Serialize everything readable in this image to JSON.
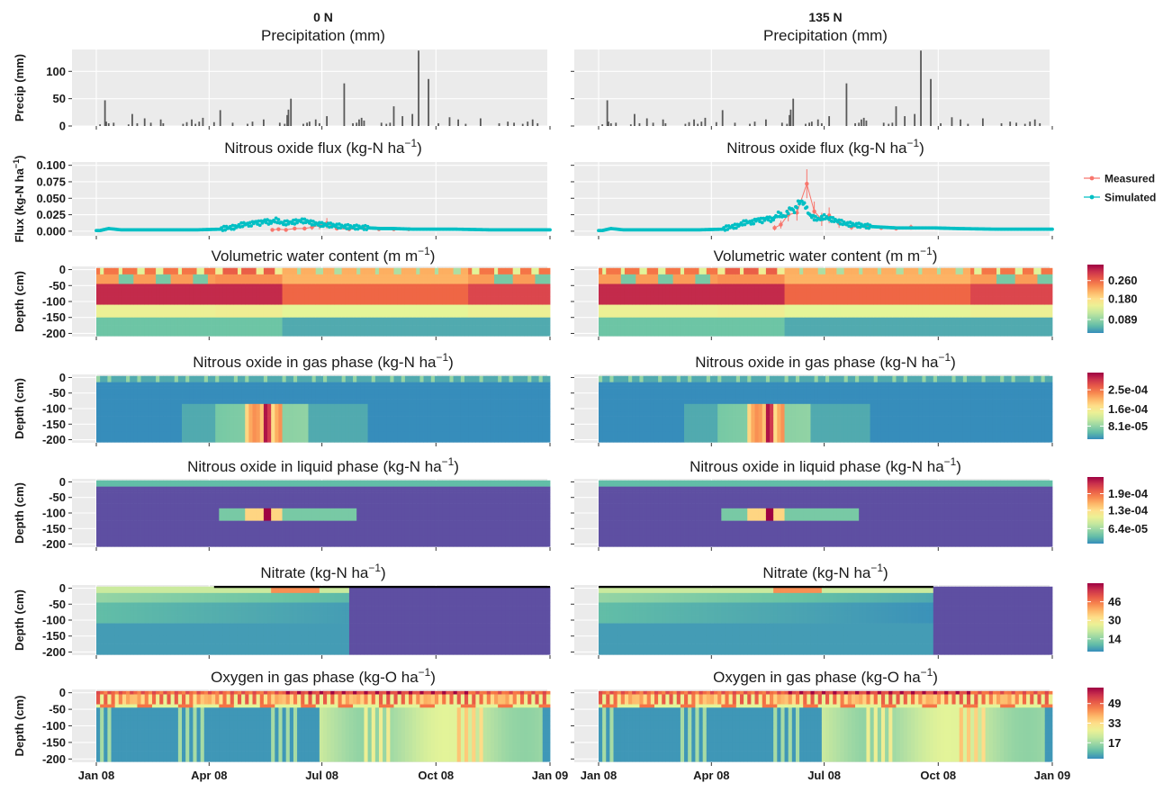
{
  "columns": [
    {
      "title": "0 N"
    },
    {
      "title": "135 N"
    }
  ],
  "colors": {
    "panel_bg": "#ebebeb",
    "bar": "#595959",
    "measured": "#f8766d",
    "simulated": "#00bfc4",
    "spectral": [
      "#3288bd",
      "#66c2a5",
      "#abdda4",
      "#e6f598",
      "#fee08b",
      "#fdae61",
      "#f46d43",
      "#d53e4f",
      "#9e0142"
    ],
    "deep_purple": "#5e4fa2"
  },
  "x_axis": {
    "ticks": [
      "Jan 08",
      "Apr 08",
      "Jul 08",
      "Oct 08",
      "Jan 09"
    ],
    "tick_days": [
      0,
      91,
      182,
      274,
      366
    ]
  },
  "chart_data": [
    {
      "type": "bar",
      "title": "Precipitation (mm)",
      "ylabel": "Precip (mm)",
      "ylim": [
        0,
        140
      ],
      "yticks": [
        "0",
        "50",
        "100"
      ],
      "ytick_values": [
        0,
        50,
        100
      ],
      "x_units": "day of year 2008",
      "series": [
        {
          "x": [
            3,
            7,
            8,
            10,
            14,
            26,
            29,
            33,
            39,
            44,
            52,
            54,
            70,
            73,
            77,
            80,
            83,
            86,
            95,
            100,
            110,
            122,
            126,
            135,
            148,
            152,
            154,
            155,
            157,
            167,
            170,
            172,
            177,
            180,
            186,
            200,
            207,
            210,
            212,
            214,
            216,
            230,
            234,
            237,
            240,
            247,
            255,
            260,
            268,
            276,
            285,
            292,
            298,
            310,
            325,
            332,
            337,
            344,
            348,
            352,
            356
          ],
          "values": [
            3,
            47,
            8,
            5,
            6,
            3,
            22,
            5,
            14,
            6,
            12,
            5,
            4,
            7,
            12,
            4,
            8,
            15,
            7,
            29,
            6,
            4,
            8,
            12,
            6,
            4,
            20,
            30,
            50,
            4,
            6,
            8,
            12,
            5,
            18,
            78,
            5,
            6,
            12,
            15,
            10,
            6,
            4,
            6,
            36,
            18,
            22,
            138,
            86,
            5,
            16,
            12,
            4,
            14,
            5,
            8,
            6,
            4,
            8,
            12,
            5
          ]
        }
      ]
    },
    {
      "type": "line",
      "title": "Nitrous oxide flux (kg-N ha⁻¹)",
      "ylabel": "Flux (kg-N ha⁻¹)",
      "ylim": [
        -0.007,
        0.105
      ],
      "yticks": [
        "0.000",
        "0.025",
        "0.050",
        "0.075",
        "0.100"
      ],
      "ytick_values": [
        0,
        0.025,
        0.05,
        0.075,
        0.1
      ],
      "x_units": "day of year 2008",
      "legend": {
        "position": "right",
        "entries": [
          "Measured",
          "Simulated"
        ]
      },
      "panels": [
        {
          "column": "0 N",
          "simulated": {
            "x": [
              3,
              10,
              20,
              40,
              60,
              80,
              100,
              105,
              112,
              116,
              120,
              124,
              128,
              132,
              136,
              140,
              145,
              150,
              155,
              160,
              165,
              170,
              175,
              182,
              190,
              200,
              210,
              220,
              230,
              240,
              255,
              270,
              290,
              320,
              350,
              366
            ],
            "values": [
              0.001,
              0.004,
              0.002,
              0.002,
              0.002,
              0.002,
              0.003,
              0.005,
              0.006,
              0.009,
              0.011,
              0.01,
              0.014,
              0.012,
              0.016,
              0.013,
              0.017,
              0.012,
              0.013,
              0.014,
              0.016,
              0.015,
              0.012,
              0.01,
              0.009,
              0.007,
              0.006,
              0.005,
              0.004,
              0.004,
              0.003,
              0.003,
              0.003,
              0.002,
              0.002,
              0.002
            ]
          },
          "measured": {
            "x": [
              142,
              147,
              153,
              160,
              168,
              174,
              180,
              186,
              194,
              204,
              216,
              228,
              240,
              252
            ],
            "values": [
              0.002,
              0.003,
              0.002,
              0.004,
              0.004,
              0.006,
              0.009,
              0.012,
              0.004,
              0.003,
              0.004,
              0.003,
              0.003,
              0.003
            ],
            "errors": [
              0.002,
              0.002,
              0.002,
              0.003,
              0.003,
              0.004,
              0.006,
              0.008,
              0.003,
              0.002,
              0.002,
              0.002,
              0.002,
              0.002
            ]
          }
        },
        {
          "column": "135 N",
          "simulated": {
            "x": [
              3,
              10,
              20,
              40,
              60,
              80,
              100,
              105,
              112,
              116,
              120,
              124,
              128,
              132,
              136,
              140,
              145,
              150,
              155,
              158,
              161,
              164,
              167,
              170,
              174,
              178,
              182,
              186,
              190,
              195,
              200,
              210,
              220,
              230,
              240,
              255,
              270,
              290,
              320,
              350,
              366
            ],
            "values": [
              0.001,
              0.004,
              0.002,
              0.002,
              0.002,
              0.002,
              0.003,
              0.006,
              0.008,
              0.012,
              0.014,
              0.013,
              0.018,
              0.016,
              0.02,
              0.017,
              0.026,
              0.022,
              0.035,
              0.03,
              0.043,
              0.045,
              0.038,
              0.025,
              0.02,
              0.018,
              0.022,
              0.019,
              0.017,
              0.014,
              0.011,
              0.009,
              0.007,
              0.006,
              0.005,
              0.005,
              0.005,
              0.004,
              0.003,
              0.003,
              0.003
            ]
          },
          "measured": {
            "x": [
              142,
              147,
              153,
              160,
              168,
              174,
              180,
              186,
              194,
              204,
              216,
              228,
              240,
              252
            ],
            "values": [
              0.005,
              0.01,
              0.025,
              0.028,
              0.072,
              0.03,
              0.018,
              0.024,
              0.012,
              0.006,
              0.008,
              0.005,
              0.004,
              0.006
            ],
            "errors": [
              0.004,
              0.006,
              0.01,
              0.012,
              0.022,
              0.015,
              0.01,
              0.012,
              0.007,
              0.004,
              0.004,
              0.003,
              0.003,
              0.004
            ]
          }
        }
      ]
    },
    {
      "type": "heatmap",
      "title": "Volumetric water content (m m⁻¹)",
      "ylabel": "Depth (cm)",
      "ylim": [
        -210,
        10
      ],
      "yticks": [
        "0",
        "-50",
        "-100",
        "-150",
        "-200"
      ],
      "ytick_values": [
        0,
        -50,
        -100,
        -150,
        -200
      ],
      "colorbar_labels": [
        "0.260",
        "0.180",
        "0.089"
      ],
      "colorbar_values": [
        0.26,
        0.18,
        0.089
      ],
      "value_range": [
        0.03,
        0.33
      ]
    },
    {
      "type": "heatmap",
      "title": "Nitrous oxide in gas phase (kg-N ha⁻¹)",
      "ylabel": "Depth (cm)",
      "ylim": [
        -210,
        10
      ],
      "yticks": [
        "0",
        "-50",
        "-100",
        "-150",
        "-200"
      ],
      "ytick_values": [
        0,
        -50,
        -100,
        -150,
        -200
      ],
      "colorbar_labels": [
        "2.5e-04",
        "1.6e-04",
        "8.1e-05"
      ],
      "colorbar_values": [
        0.00025,
        0.00016,
        8.1e-05
      ],
      "value_range": [
        2e-05,
        0.00033
      ]
    },
    {
      "type": "heatmap",
      "title": "Nitrous oxide in liquid phase (kg-N ha⁻¹)",
      "ylabel": "Depth (cm)",
      "ylim": [
        -210,
        10
      ],
      "yticks": [
        "0",
        "-50",
        "-100",
        "-150",
        "-200"
      ],
      "ytick_values": [
        0,
        -50,
        -100,
        -150,
        -200
      ],
      "colorbar_labels": [
        "1.9e-04",
        "1.3e-04",
        "6.4e-05"
      ],
      "colorbar_values": [
        0.00019,
        0.00013,
        6.4e-05
      ],
      "value_range": [
        1e-05,
        0.00025
      ]
    },
    {
      "type": "heatmap",
      "title": "Nitrate (kg-N ha⁻¹)",
      "ylabel": "Depth (cm)",
      "ylim": [
        -210,
        10
      ],
      "yticks": [
        "0",
        "-50",
        "-100",
        "-150",
        "-200"
      ],
      "ytick_values": [
        0,
        -50,
        -100,
        -150,
        -200
      ],
      "colorbar_labels": [
        "46",
        "30",
        "14"
      ],
      "colorbar_values": [
        46,
        30,
        14
      ],
      "value_range": [
        3,
        62
      ]
    },
    {
      "type": "heatmap",
      "title": "Oxygen in gas phase (kg-O ha⁻¹)",
      "ylabel": "Depth (cm)",
      "ylim": [
        -210,
        10
      ],
      "yticks": [
        "0",
        "-50",
        "-100",
        "-150",
        "-200"
      ],
      "ytick_values": [
        0,
        -50,
        -100,
        -150,
        -200
      ],
      "colorbar_labels": [
        "49",
        "33",
        "17"
      ],
      "colorbar_values": [
        49,
        33,
        17
      ],
      "value_range": [
        4,
        62
      ]
    }
  ]
}
